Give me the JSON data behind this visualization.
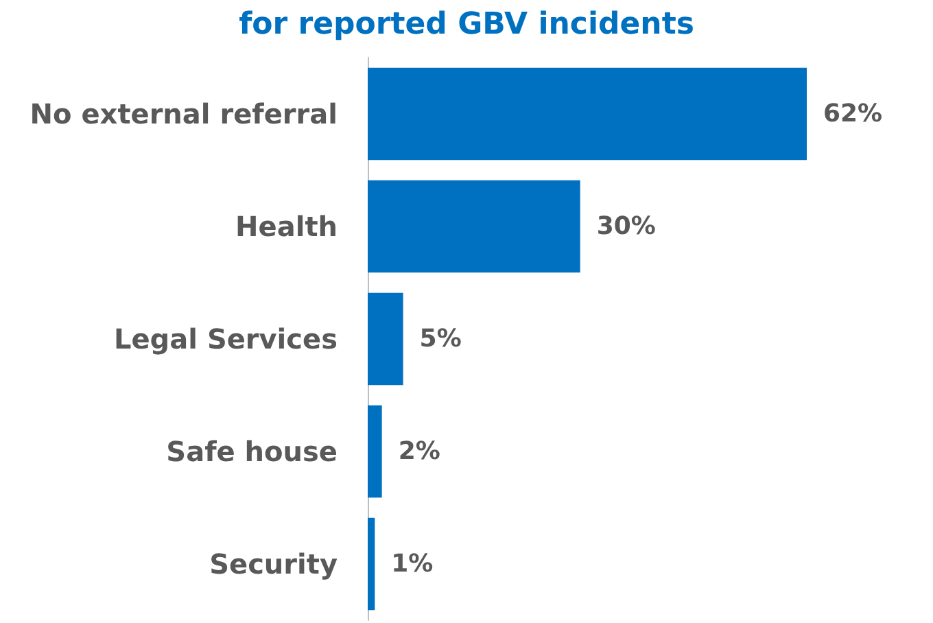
{
  "chart_data": {
    "type": "bar",
    "orientation": "horizontal",
    "title": "for reported GBV incidents",
    "categories": [
      "No external referral",
      "Health",
      "Legal Services",
      "Safe house",
      "Security"
    ],
    "values": [
      62,
      30,
      5,
      2,
      1
    ],
    "color": "#0070c0",
    "value_labels": [
      "62%",
      "30%",
      "5%",
      "2%",
      "1%"
    ]
  }
}
